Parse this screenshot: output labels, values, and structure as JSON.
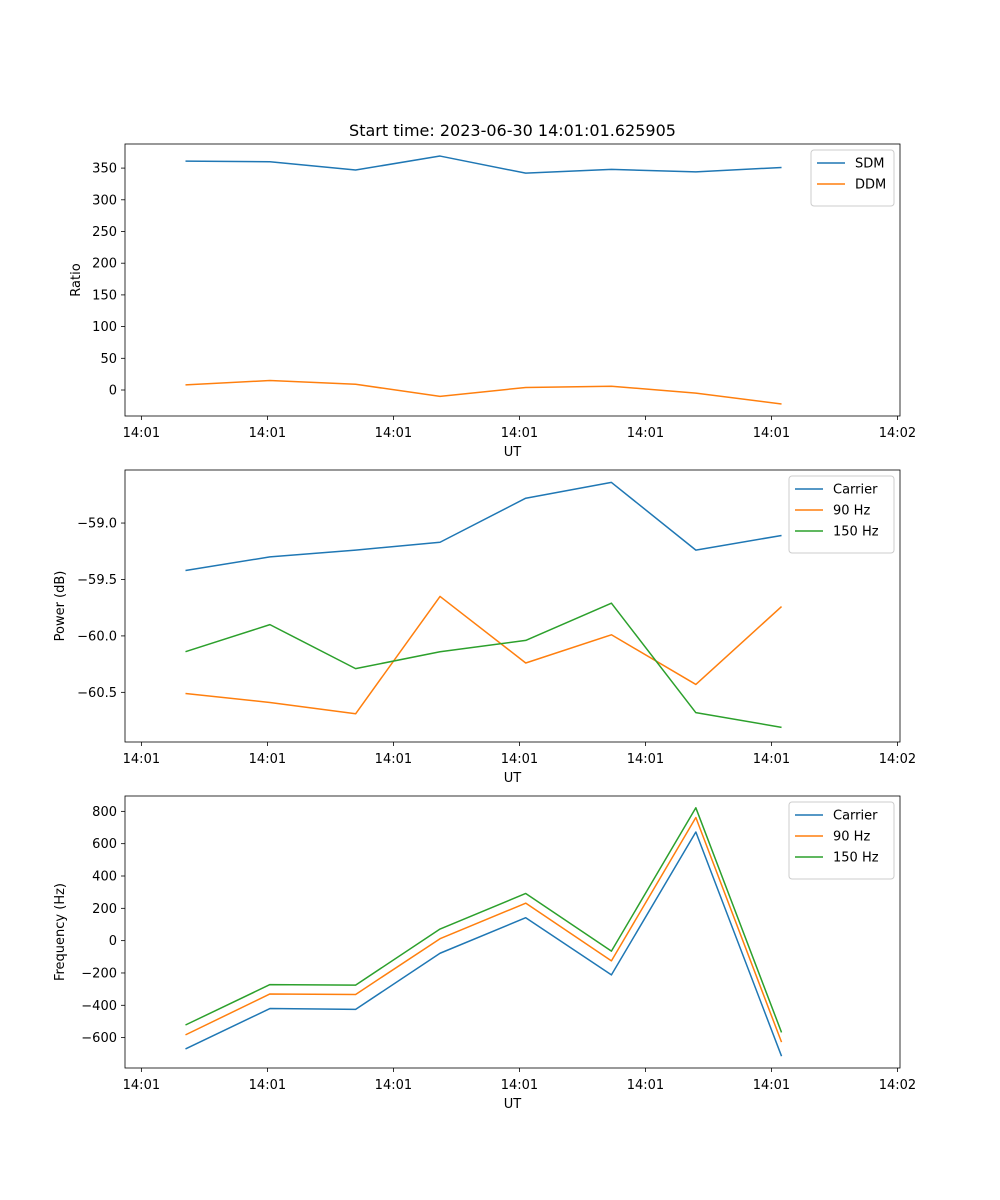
{
  "title": "Start time: 2023-06-30 14:01:01.625905",
  "chart_data": [
    {
      "type": "line",
      "xlabel": "UT",
      "ylabel": "Ratio",
      "x_tick_labels": [
        "14:01",
        "14:01",
        "14:01",
        "14:01",
        "14:01",
        "14:01",
        "14:02"
      ],
      "x_tick_positions": [
        0,
        1,
        2,
        3,
        4,
        5,
        6
      ],
      "xlim": [
        -0.13,
        6.02
      ],
      "x": [
        0.35,
        1.02,
        1.7,
        2.37,
        3.05,
        3.73,
        4.4,
        5.08
      ],
      "ylim": [
        -41,
        388
      ],
      "yticks": [
        0,
        50,
        100,
        150,
        200,
        250,
        300,
        350
      ],
      "legend": "top-right",
      "series": [
        {
          "name": "SDM",
          "color": "#1f77b4",
          "values": [
            361,
            360,
            347,
            369,
            342,
            348,
            344,
            351
          ]
        },
        {
          "name": "DDM",
          "color": "#ff7f0e",
          "values": [
            8,
            15,
            9,
            -10,
            4,
            6,
            -5,
            -22
          ]
        }
      ]
    },
    {
      "type": "line",
      "xlabel": "UT",
      "ylabel": "Power (dB)",
      "x_tick_labels": [
        "14:01",
        "14:01",
        "14:01",
        "14:01",
        "14:01",
        "14:01",
        "14:02"
      ],
      "x_tick_positions": [
        0,
        1,
        2,
        3,
        4,
        5,
        6
      ],
      "xlim": [
        -0.13,
        6.02
      ],
      "x": [
        0.35,
        1.02,
        1.7,
        2.37,
        3.05,
        3.73,
        4.4,
        5.08
      ],
      "ylim": [
        -60.94,
        -58.53
      ],
      "yticks": [
        -60.5,
        -60.0,
        -59.5,
        -59.0
      ],
      "y_tick_labels": [
        "−60.5",
        "−60.0",
        "−59.5",
        "−59.0"
      ],
      "legend": "top-right",
      "series": [
        {
          "name": "Carrier",
          "color": "#1f77b4",
          "values": [
            -59.42,
            -59.3,
            -59.24,
            -59.17,
            -58.78,
            -58.64,
            -59.24,
            -59.11
          ]
        },
        {
          "name": "90 Hz",
          "color": "#ff7f0e",
          "values": [
            -60.51,
            -60.59,
            -60.69,
            -59.65,
            -60.24,
            -59.99,
            -60.43,
            -59.74
          ]
        },
        {
          "name": "150 Hz",
          "color": "#2ca02c",
          "values": [
            -60.14,
            -59.9,
            -60.29,
            -60.14,
            -60.04,
            -59.71,
            -60.68,
            -60.81
          ]
        }
      ]
    },
    {
      "type": "line",
      "xlabel": "UT",
      "ylabel": "Frequency (Hz)",
      "x_tick_labels": [
        "14:01",
        "14:01",
        "14:01",
        "14:01",
        "14:01",
        "14:01",
        "14:02"
      ],
      "x_tick_positions": [
        0,
        1,
        2,
        3,
        4,
        5,
        6
      ],
      "xlim": [
        -0.13,
        6.02
      ],
      "x": [
        0.35,
        1.02,
        1.7,
        2.37,
        3.05,
        3.73,
        4.4,
        5.08
      ],
      "ylim": [
        -788,
        895
      ],
      "yticks": [
        -600,
        -400,
        -200,
        0,
        200,
        400,
        600,
        800
      ],
      "y_tick_labels": [
        "−600",
        "−400",
        "−200",
        "0",
        "200",
        "400",
        "600",
        "800"
      ],
      "legend": "top-right",
      "series": [
        {
          "name": "Carrier",
          "color": "#1f77b4",
          "values": [
            -670,
            -420,
            -425,
            -78,
            142,
            -212,
            672,
            -715
          ]
        },
        {
          "name": "90 Hz",
          "color": "#ff7f0e",
          "values": [
            -583,
            -330,
            -333,
            12,
            232,
            -125,
            762,
            -628
          ]
        },
        {
          "name": "150 Hz",
          "color": "#2ca02c",
          "values": [
            -522,
            -272,
            -275,
            72,
            292,
            -65,
            822,
            -568
          ]
        }
      ]
    }
  ]
}
